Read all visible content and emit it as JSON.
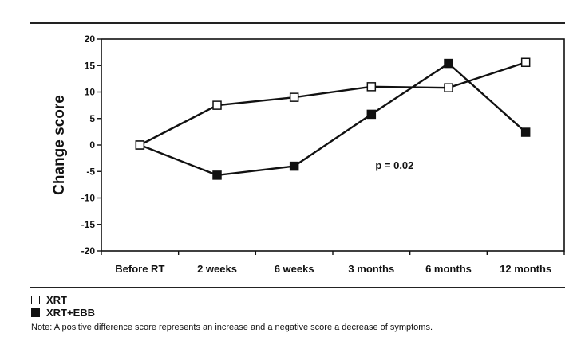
{
  "chart_data": {
    "type": "line",
    "title": "",
    "xlabel": "",
    "ylabel": "Change score",
    "ylim": [
      -20,
      20
    ],
    "yticks": [
      20,
      15,
      10,
      5,
      0,
      -5,
      -10,
      -15,
      -20
    ],
    "categories": [
      "Before RT",
      "2 weeks",
      "6 weeks",
      "3 months",
      "6 months",
      "12 months"
    ],
    "series": [
      {
        "name": "XRT",
        "marker": "open-square",
        "color": "#111111",
        "fill": "#ffffff",
        "values": [
          0,
          7.5,
          9,
          11,
          10.8,
          15.6
        ]
      },
      {
        "name": "XRT+EBB",
        "marker": "filled-square",
        "color": "#111111",
        "fill": "#111111",
        "values": [
          0,
          -5.7,
          -4,
          5.8,
          15.4,
          2.4
        ]
      }
    ],
    "annotation": "p = 0.02",
    "grid": false,
    "legend_position": "bottom-left"
  },
  "note": "Note: A positive difference score represents an increase and a negative score a decrease of symptoms."
}
